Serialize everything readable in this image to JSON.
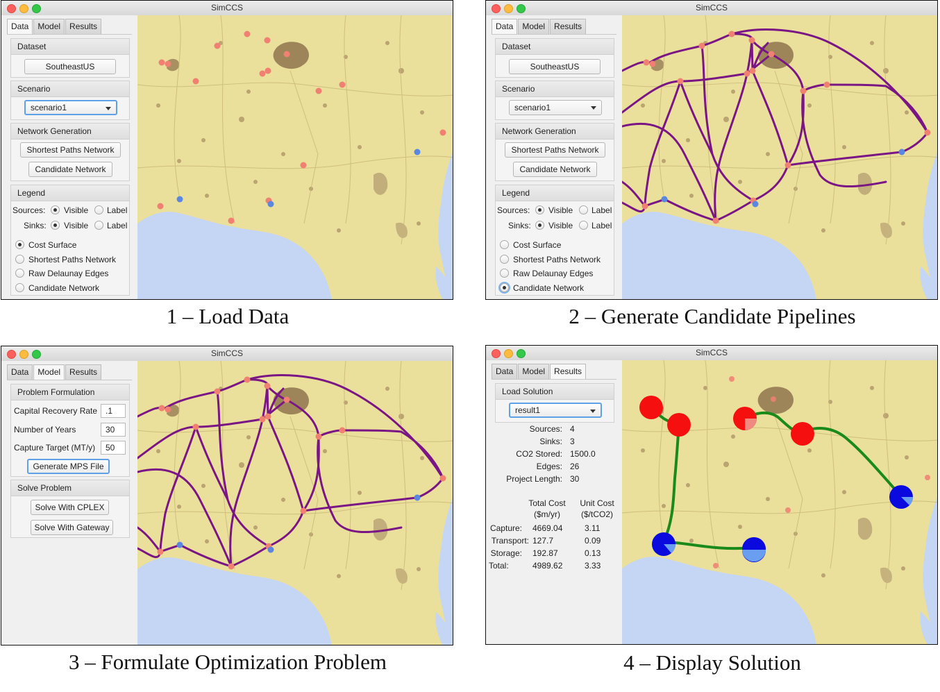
{
  "window_title": "SimCCS",
  "tabs": {
    "data": "Data",
    "model": "Model",
    "results": "Results"
  },
  "captions": {
    "p1": "1 – Load Data",
    "p2": "2 – Generate Candidate Pipelines",
    "p3": "3 – Formulate Optimization Problem",
    "p4": "4 – Display Solution"
  },
  "data_tab": {
    "dataset_header": "Dataset",
    "dataset_button": "SoutheastUS",
    "scenario_header": "Scenario",
    "scenario_value": "scenario1",
    "network_header": "Network Generation",
    "shortest_paths_button": "Shortest Paths Network",
    "candidate_button": "Candidate Network",
    "legend_header": "Legend",
    "sources_label": "Sources:",
    "sinks_label": "Sinks:",
    "visible_label": "Visible",
    "label_label": "Label",
    "layers": [
      "Cost Surface",
      "Shortest Paths Network",
      "Raw Delaunay Edges",
      "Candidate Network"
    ],
    "selected_layer_p1": "Cost Surface",
    "selected_layer_p2": "Candidate Network"
  },
  "model_tab": {
    "problem_header": "Problem Formulation",
    "crr_label": "Capital Recovery Rate",
    "crr_value": ".1",
    "years_label": "Number of Years",
    "years_value": "30",
    "target_label": "Capture Target (MT/y)",
    "target_value": "50",
    "mps_button": "Generate MPS File",
    "solve_header": "Solve Problem",
    "cplex_button": "Solve With CPLEX",
    "gateway_button": "Solve With Gateway"
  },
  "results_tab": {
    "load_header": "Load Solution",
    "result_value": "result1",
    "summary": [
      {
        "label": "Sources:",
        "value": "4"
      },
      {
        "label": "Sinks:",
        "value": "3"
      },
      {
        "label": "CO2 Stored:",
        "value": "1500.0"
      },
      {
        "label": "Edges:",
        "value": "26"
      },
      {
        "label": "Project Length:",
        "value": "30"
      }
    ],
    "col_total_1": "Total Cost",
    "col_total_2": "($m/yr)",
    "col_unit_1": "Unit Cost",
    "col_unit_2": "($/tCO2)",
    "costs": [
      {
        "label": "Capture:",
        "total": "4669.04",
        "unit": "3.11"
      },
      {
        "label": "Transport:",
        "total": "127.7",
        "unit": "0.09"
      },
      {
        "label": "Storage:",
        "total": "192.87",
        "unit": "0.13"
      },
      {
        "label": "Total:",
        "total": "4989.62",
        "unit": "3.33"
      }
    ]
  },
  "colors": {
    "land": "#eadf9b",
    "water": "#c5d6f5",
    "urban": "#8a6e48",
    "source": "#f08072",
    "sink": "#5a87e0",
    "candidate_pipeline": "#7a1585",
    "solution_pipeline": "#1a8a1a",
    "solution_source": "#f50f0f",
    "solution_sink": "#0a0adf"
  }
}
